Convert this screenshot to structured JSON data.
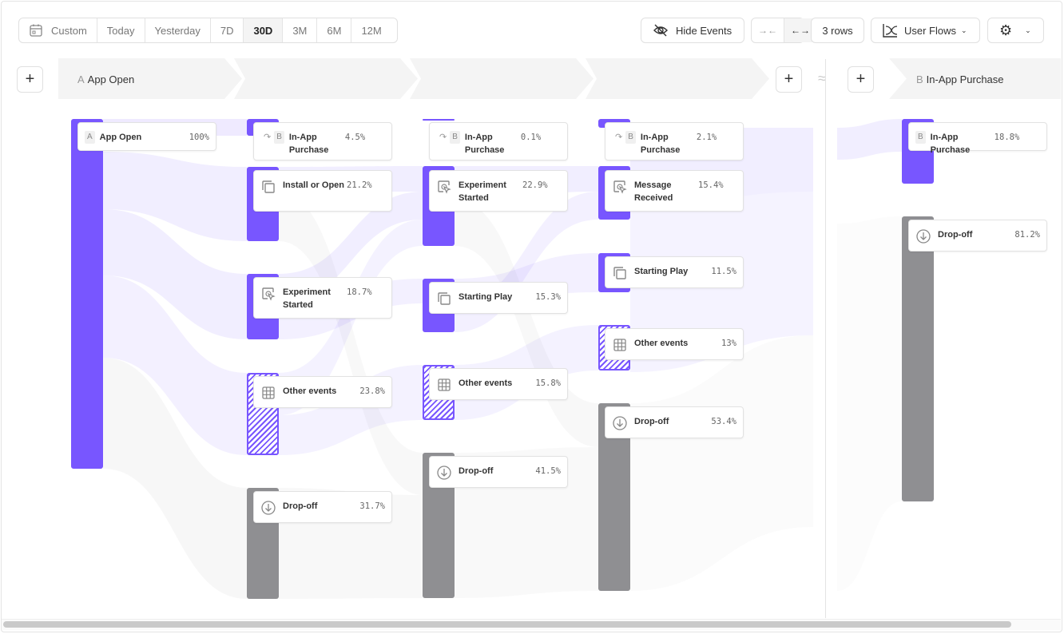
{
  "toolbar": {
    "date_ranges": [
      "Custom",
      "Today",
      "Yesterday",
      "7D",
      "30D",
      "3M",
      "6M",
      "12M"
    ],
    "active_range": "30D",
    "hide_events": "Hide Events",
    "rows": "3 rows",
    "view": "User Flows"
  },
  "steps": {
    "a": {
      "letter": "A",
      "label": "App Open"
    },
    "b": {
      "letter": "B",
      "label": "In-App Purchase"
    }
  },
  "colors": {
    "event": "#7856ff",
    "dropoff": "#8f8f92"
  },
  "columns": [
    {
      "nodes": [
        {
          "label": "App Open",
          "pct": "100%",
          "icon": "letter-a",
          "letter": "A",
          "kind": "event"
        }
      ]
    },
    {
      "nodes": [
        {
          "label": "In-App Purchase",
          "pct": "4.5%",
          "icon": "letter-b",
          "letter": "B",
          "kind": "event"
        },
        {
          "label": "Install or Open",
          "pct": "21.2%",
          "icon": "copy-icon",
          "kind": "event"
        },
        {
          "label": "Experiment Started",
          "pct": "18.7%",
          "icon": "cursor-click-icon",
          "kind": "event"
        },
        {
          "label": "Other events",
          "pct": "23.8%",
          "icon": "grid-icon",
          "kind": "other"
        },
        {
          "label": "Drop-off",
          "pct": "31.7%",
          "icon": "arrow-down-circle-icon",
          "kind": "drop"
        }
      ]
    },
    {
      "nodes": [
        {
          "label": "In-App Purchase",
          "pct": "0.1%",
          "icon": "letter-b",
          "letter": "B",
          "kind": "event"
        },
        {
          "label": "Experiment Started",
          "pct": "22.9%",
          "icon": "cursor-click-icon",
          "kind": "event"
        },
        {
          "label": "Starting Play",
          "pct": "15.3%",
          "icon": "copy-icon",
          "kind": "event"
        },
        {
          "label": "Other events",
          "pct": "15.8%",
          "icon": "grid-icon",
          "kind": "other"
        },
        {
          "label": "Drop-off",
          "pct": "41.5%",
          "icon": "arrow-down-circle-icon",
          "kind": "drop"
        }
      ]
    },
    {
      "nodes": [
        {
          "label": "In-App Purchase",
          "pct": "2.1%",
          "icon": "letter-b",
          "letter": "B",
          "kind": "event"
        },
        {
          "label": "Message Received",
          "pct": "15.4%",
          "icon": "cursor-click-icon",
          "kind": "event"
        },
        {
          "label": "Starting Play",
          "pct": "11.5%",
          "icon": "copy-icon",
          "kind": "event"
        },
        {
          "label": "Other events",
          "pct": "13%",
          "icon": "grid-icon",
          "kind": "other"
        },
        {
          "label": "Drop-off",
          "pct": "53.4%",
          "icon": "arrow-down-circle-icon",
          "kind": "drop"
        }
      ]
    },
    {
      "nodes": [
        {
          "label": "In-App Purchase",
          "pct": "18.8%",
          "icon": "letter-b",
          "letter": "B",
          "kind": "event"
        },
        {
          "label": "Drop-off",
          "pct": "81.2%",
          "icon": "arrow-down-circle-icon",
          "kind": "drop"
        }
      ]
    }
  ]
}
